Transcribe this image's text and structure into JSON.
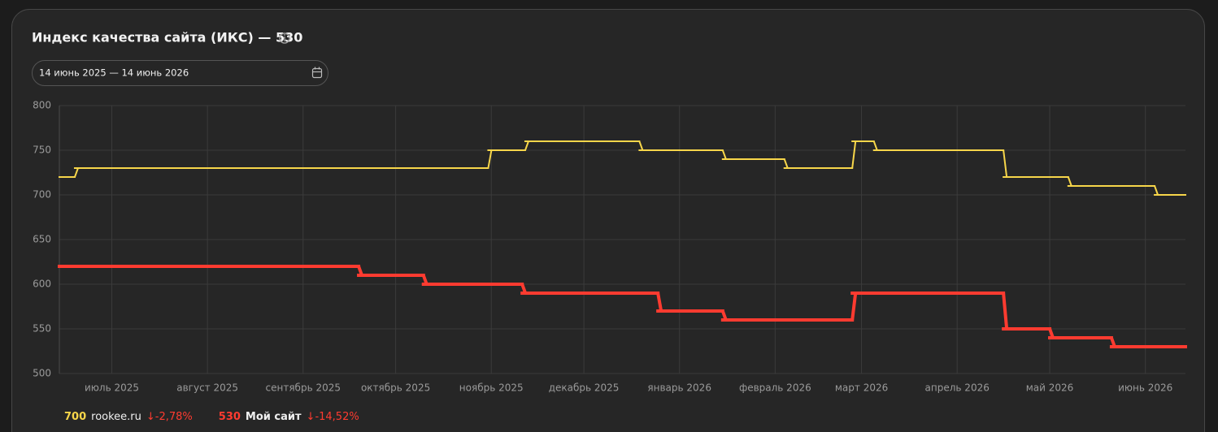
{
  "header": {
    "title": "Индекс качества сайта (ИКС) — 530",
    "date_range": "14 июнь 2025 — 14 июнь 2026"
  },
  "chart_data": {
    "type": "line",
    "step": true,
    "grid": true,
    "xlim": [
      "2025-06-14",
      "2026-06-14"
    ],
    "xticks": [
      {
        "value": "2025-07-01",
        "label": "июль 2025"
      },
      {
        "value": "2025-08-01",
        "label": "август 2025"
      },
      {
        "value": "2025-09-01",
        "label": "сентябрь 2025"
      },
      {
        "value": "2025-10-01",
        "label": "октябрь 2025"
      },
      {
        "value": "2025-11-01",
        "label": "ноябрь 2025"
      },
      {
        "value": "2025-12-01",
        "label": "декабрь 2025"
      },
      {
        "value": "2026-01-01",
        "label": "январь 2026"
      },
      {
        "value": "2026-02-01",
        "label": "февраль 2026"
      },
      {
        "value": "2026-03-01",
        "label": "март 2026"
      },
      {
        "value": "2026-04-01",
        "label": "апрель 2026"
      },
      {
        "value": "2026-05-01",
        "label": "май 2026"
      },
      {
        "value": "2026-06-01",
        "label": "июнь 2026"
      }
    ],
    "ylim": [
      500,
      800
    ],
    "yticks": [
      500,
      550,
      600,
      650,
      700,
      750,
      800
    ],
    "series": [
      {
        "name": "rookee.ru",
        "color": "#f7d64a",
        "current": 700,
        "change": "↓-2,78%",
        "x": [
          "2025-06-14",
          "2025-06-19",
          "2025-10-31",
          "2025-11-12",
          "2025-12-19",
          "2026-01-15",
          "2026-02-04",
          "2026-02-26",
          "2026-03-05",
          "2026-04-16",
          "2026-05-07",
          "2026-06-04"
        ],
        "values": [
          720,
          730,
          750,
          760,
          750,
          740,
          730,
          760,
          750,
          720,
          710,
          700
        ]
      },
      {
        "name": "Мой сайт",
        "color": "#ff3b30",
        "current": 530,
        "change": "↓-14,52%",
        "x": [
          "2025-06-14",
          "2025-09-19",
          "2025-10-10",
          "2025-11-11",
          "2025-12-25",
          "2026-01-15",
          "2026-02-26",
          "2026-04-16",
          "2026-05-01",
          "2026-05-21"
        ],
        "values": [
          620,
          610,
          600,
          590,
          570,
          560,
          590,
          550,
          540,
          530
        ]
      }
    ]
  }
}
